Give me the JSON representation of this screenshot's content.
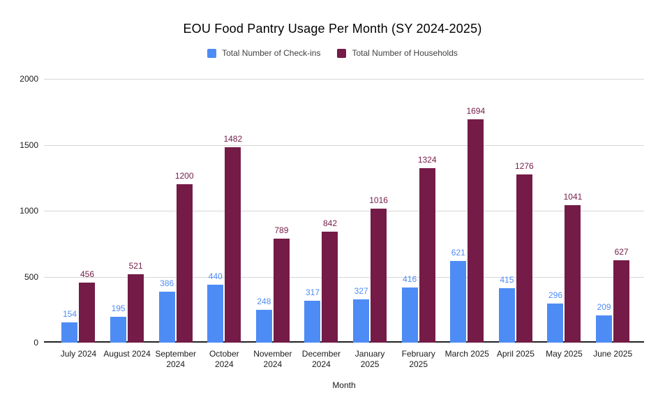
{
  "chart_data": {
    "type": "bar",
    "title": "EOU Food Pantry Usage Per Month (SY 2024-2025)",
    "xlabel": "Month",
    "ylabel": "",
    "ylim": [
      0,
      2000
    ],
    "yticks": [
      0,
      500,
      1000,
      1500,
      2000
    ],
    "grid": true,
    "legend_position": "top",
    "data_labels": true,
    "categories": [
      "July 2024",
      "August 2024",
      "September 2024",
      "October 2024",
      "November 2024",
      "December 2024",
      "January 2025",
      "February 2025",
      "March 2025",
      "April 2025",
      "May 2025",
      "June 2025"
    ],
    "series": [
      {
        "name": "Total Number of Check-ins",
        "color": "#4e8cf5",
        "values": [
          154,
          195,
          386,
          440,
          248,
          317,
          327,
          416,
          621,
          415,
          296,
          209
        ]
      },
      {
        "name": "Total Number of Households",
        "color": "#741b47",
        "values": [
          456,
          521,
          1200,
          1482,
          789,
          842,
          1016,
          1324,
          1694,
          1276,
          1041,
          627
        ]
      }
    ],
    "colors": {
      "background": "#ffffff",
      "gridline": "#d6d6d6",
      "axis_line": "#212121",
      "title_text": "#000000",
      "tick_text": "#1a1a1a",
      "legend_text": "#424242"
    }
  }
}
